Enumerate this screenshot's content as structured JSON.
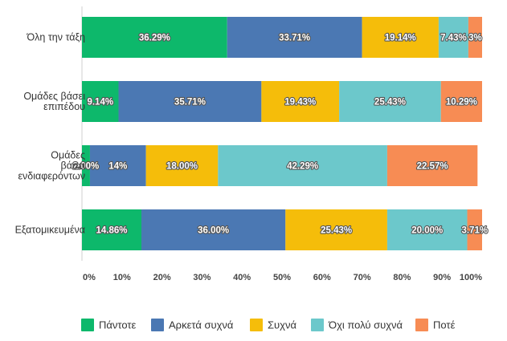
{
  "chart_data": {
    "type": "bar",
    "orientation": "horizontal",
    "stacked": true,
    "percent": true,
    "categories": [
      "Όλη την τάξη",
      "Ομάδες βάσει επιπέδου",
      "Ομάδες βάσει ενδιαφερόντων",
      "Εξατομικευμένα"
    ],
    "category_lines": [
      [
        "Όλη την τάξη"
      ],
      [
        "Ομάδες βάσει",
        "επιπέδου"
      ],
      [
        "Ομάδες",
        "βάσει",
        "ενδιαφερόντων"
      ],
      [
        "Εξατομικευμένα"
      ]
    ],
    "series": [
      {
        "name": "Πάντοτε",
        "color": "#0db86b",
        "values": [
          36.29,
          9.14,
          2.0,
          14.86
        ],
        "labels": [
          "36.29%",
          "9.14%",
          "2.00%",
          "14.86%"
        ]
      },
      {
        "name": "Αρκετά συχνά",
        "color": "#4b78b3",
        "values": [
          33.71,
          35.71,
          14.0,
          36.0
        ],
        "labels": [
          "33.71%",
          "35.71%",
          "14%",
          "36.00%"
        ]
      },
      {
        "name": "Συχνά",
        "color": "#f5bd0a",
        "values": [
          19.14,
          19.43,
          18.0,
          25.43
        ],
        "labels": [
          "19.14%",
          "19.43%",
          "18.00%",
          "25.43%"
        ]
      },
      {
        "name": "Όχι πολύ συχνά",
        "color": "#6cc8cb",
        "values": [
          7.43,
          25.43,
          42.29,
          20.0
        ],
        "labels": [
          "7.43%",
          "25.43%",
          "42.29%",
          "20.00%"
        ]
      },
      {
        "name": "Ποτέ",
        "color": "#f78c54",
        "values": [
          3.43,
          10.29,
          22.57,
          3.71
        ],
        "labels": [
          "3%",
          "10.29%",
          "22.57%",
          "3.71%"
        ]
      }
    ],
    "x_ticks": [
      "0%",
      "10%",
      "20%",
      "30%",
      "40%",
      "50%",
      "60%",
      "70%",
      "80%",
      "90%",
      "100%"
    ],
    "xlim": [
      0,
      100
    ],
    "title": "",
    "xlabel": "",
    "ylabel": "",
    "legend_position": "bottom"
  }
}
